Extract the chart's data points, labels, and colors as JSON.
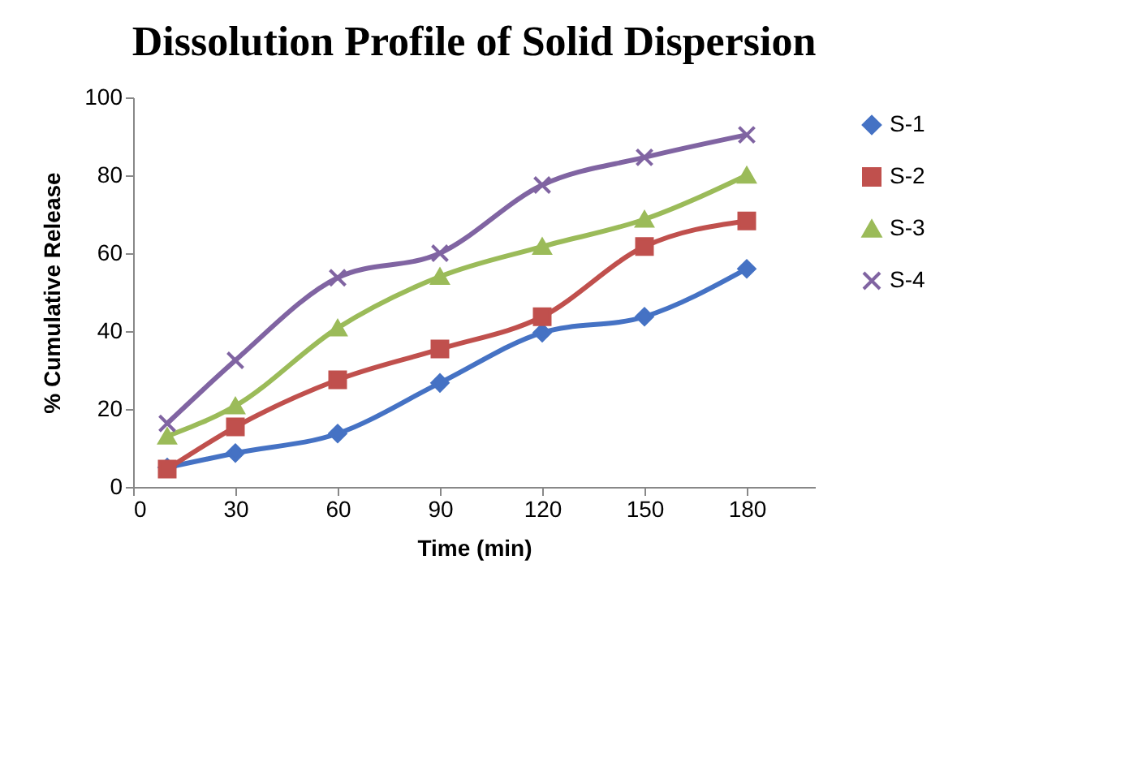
{
  "chart_data": {
    "type": "line",
    "title": "Dissolution Profile of Solid Dispersion",
    "xlabel": "Time (min)",
    "ylabel": "% Cumulative Release",
    "x": [
      10,
      30,
      60,
      90,
      120,
      150,
      180
    ],
    "series": [
      {
        "name": "S-1",
        "color": "#4572c4",
        "marker": "diamond",
        "values": [
          5,
          8.7,
          13.7,
          26.7,
          39.6,
          43.7,
          56
        ]
      },
      {
        "name": "S-2",
        "color": "#c0504d",
        "marker": "square",
        "values": [
          4.6,
          15.4,
          27.5,
          35.4,
          43.7,
          61.7,
          68.3
        ]
      },
      {
        "name": "S-3",
        "color": "#9bbb59",
        "marker": "triangle",
        "values": [
          13,
          20.8,
          40.8,
          54,
          61.7,
          68.7,
          80
        ]
      },
      {
        "name": "S-4",
        "color": "#8064a2",
        "marker": "cross",
        "values": [
          16.3,
          32.5,
          53.7,
          60,
          77.5,
          84.6,
          90.4
        ]
      }
    ],
    "xlim": [
      0,
      200
    ],
    "xticks": [
      0,
      30,
      60,
      90,
      120,
      150,
      180
    ],
    "ylim": [
      0,
      100
    ],
    "yticks": [
      0,
      20,
      40,
      60,
      80,
      100
    ],
    "grid": false,
    "legend": "right",
    "line_style": "solid"
  }
}
